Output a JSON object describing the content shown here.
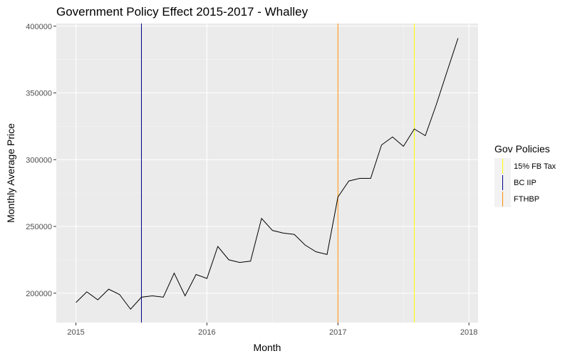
{
  "chart_data": {
    "type": "line",
    "title": "Government Policy Effect 2015-2017 - Whalley",
    "xlabel": "Month",
    "ylabel": "Monthly Average Price",
    "x_ticks": [
      "2015",
      "2016",
      "2017",
      "2018"
    ],
    "y_ticks": [
      "200000",
      "250000",
      "300000",
      "350000",
      "400000"
    ],
    "xlim": [
      2014.85,
      2018.07
    ],
    "ylim": [
      178000,
      402000
    ],
    "grid": true,
    "legend_position": "right",
    "series": [
      {
        "color": "#000000",
        "x": [
          2015.0,
          2015.083,
          2015.167,
          2015.25,
          2015.333,
          2015.417,
          2015.5,
          2015.583,
          2015.667,
          2015.75,
          2015.833,
          2015.917,
          2016.0,
          2016.083,
          2016.167,
          2016.25,
          2016.333,
          2016.417,
          2016.5,
          2016.583,
          2016.667,
          2016.75,
          2016.833,
          2016.917,
          2017.0,
          2017.083,
          2017.167,
          2017.25,
          2017.333,
          2017.417,
          2017.5,
          2017.583,
          2017.667,
          2017.75,
          2017.833,
          2017.917
        ],
        "y": [
          193000,
          201000,
          195000,
          203000,
          199000,
          188000,
          197000,
          198000,
          197000,
          215000,
          198000,
          214000,
          211000,
          235000,
          225000,
          223000,
          224000,
          256000,
          247000,
          245000,
          244000,
          236000,
          231000,
          229000,
          272000,
          284000,
          286000,
          286000,
          311000,
          317000,
          310000,
          323000,
          318000,
          341000,
          366000,
          391000
        ]
      }
    ],
    "policy_lines": [
      {
        "name": "BC IIP",
        "x": 2015.5,
        "color": "#00008b"
      },
      {
        "name": "FTHBP",
        "x": 2017.0,
        "color": "#ff8c00"
      },
      {
        "name": "15% FB Tax",
        "x": 2017.583,
        "color": "#ffff00"
      }
    ],
    "legend": {
      "title": "Gov Policies",
      "entries": [
        {
          "label": "15% FB Tax",
          "color": "#ffff00"
        },
        {
          "label": "BC IIP",
          "color": "#00008b"
        },
        {
          "label": "FTHBP",
          "color": "#ff8c00"
        }
      ]
    }
  }
}
